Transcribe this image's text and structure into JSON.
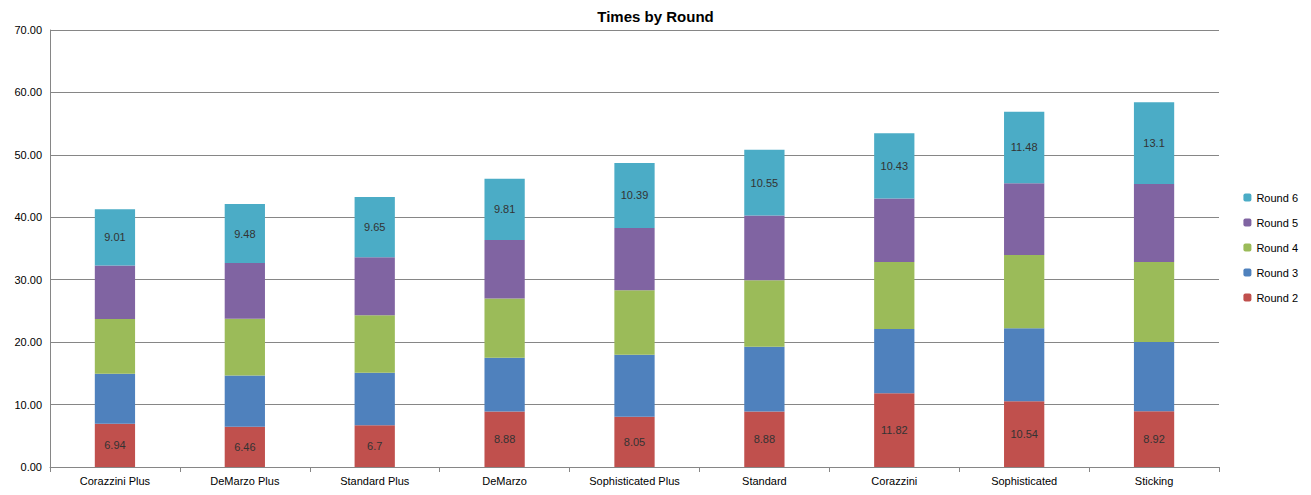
{
  "chart_data": {
    "type": "bar",
    "title": "Times by Round",
    "stacked": true,
    "grid": true,
    "legend": "right",
    "categories": [
      "Corazzini Plus",
      "DeMarzo Plus",
      "Standard Plus",
      "DeMarzo",
      "Sophisticated Plus",
      "Standard",
      "Corazzini",
      "Sophisticated",
      "Sticking"
    ],
    "series": [
      {
        "name": "Round 2",
        "color": "#c0504d",
        "data_labels": true,
        "values": [
          6.94,
          6.46,
          6.7,
          8.88,
          8.05,
          8.88,
          11.82,
          10.54,
          8.92
        ]
      },
      {
        "name": "Round 3",
        "color": "#4f81bd",
        "values": [
          8.0,
          8.2,
          8.4,
          8.6,
          9.95,
          10.4,
          10.3,
          11.7,
          11.1
        ]
      },
      {
        "name": "Round 4",
        "color": "#9bbb59",
        "values": [
          8.75,
          9.1,
          9.2,
          9.5,
          10.3,
          10.65,
          10.7,
          11.7,
          12.8
        ]
      },
      {
        "name": "Round 5",
        "color": "#8064a2",
        "values": [
          8.6,
          8.9,
          9.3,
          9.4,
          10.0,
          10.35,
          10.2,
          11.5,
          12.5
        ]
      },
      {
        "name": "Round 6",
        "color": "#4bacc6",
        "data_labels": true,
        "values": [
          9.01,
          9.48,
          9.65,
          9.81,
          10.39,
          10.55,
          10.43,
          11.48,
          13.1
        ]
      }
    ],
    "ylim": [
      0,
      70
    ],
    "yticks": [
      {
        "value": 0,
        "label": "0.00"
      },
      {
        "value": 10,
        "label": "10.00"
      },
      {
        "value": 20,
        "label": "20.00"
      },
      {
        "value": 30,
        "label": "30.00"
      },
      {
        "value": 40,
        "label": "40.00"
      },
      {
        "value": 50,
        "label": "50.00"
      },
      {
        "value": 60,
        "label": "60.00"
      },
      {
        "value": 70,
        "label": "70.00"
      }
    ]
  }
}
